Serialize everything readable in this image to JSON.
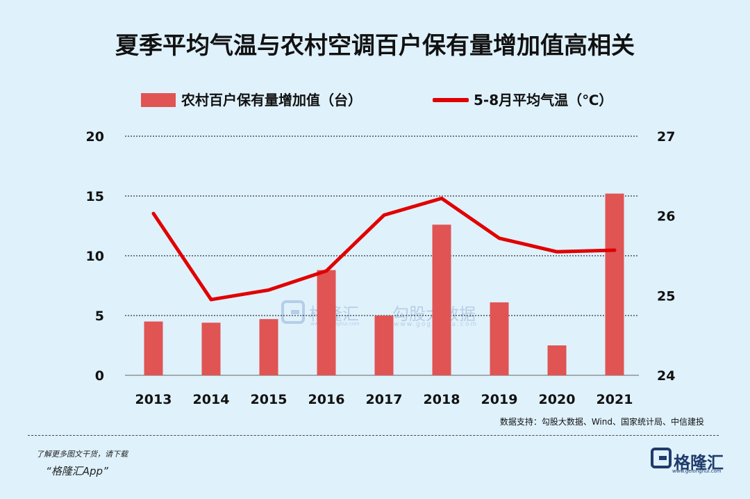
{
  "title": "夏季平均气温与农村空调百户保有量增加值高相关",
  "source": "数据支持：勾股大数据、Wind、国家统计局、中信建投",
  "footer": {
    "note": "了解更多图文干货，请下载",
    "app": "“格隆汇App”",
    "logo_text": "格隆汇",
    "logo_url": "www.gelonghui.com"
  },
  "watermark": {
    "brand1": "格隆汇",
    "url1": "www.gelonghui.com",
    "brand2": "勾股大数据",
    "url2": "www.gogudata.com"
  },
  "colors": {
    "bar": "#e05454",
    "line": "#e00000",
    "background": "#dff1fb",
    "grid": "#333333"
  },
  "chart_data": {
    "type": "bar",
    "categories": [
      "2013",
      "2014",
      "2015",
      "2016",
      "2017",
      "2018",
      "2019",
      "2020",
      "2021"
    ],
    "series": [
      {
        "name": "农村百户保有量增加值（台）",
        "type": "bar",
        "axis": "left",
        "values": [
          4.5,
          4.4,
          4.7,
          8.8,
          5.0,
          12.6,
          6.1,
          2.5,
          15.2
        ]
      },
      {
        "name": "5-8月平均气温（℃）",
        "type": "line",
        "axis": "right",
        "values": [
          26.03,
          24.95,
          25.07,
          25.31,
          26.01,
          26.22,
          25.72,
          25.55,
          25.57
        ]
      }
    ],
    "y_left": {
      "min": 0,
      "max": 20,
      "ticks": [
        "0",
        "5",
        "10",
        "15",
        "20"
      ]
    },
    "y_right": {
      "min": 24,
      "max": 27,
      "ticks": [
        "24",
        "25",
        "26",
        "27"
      ]
    },
    "grid": true,
    "legend": "top"
  }
}
